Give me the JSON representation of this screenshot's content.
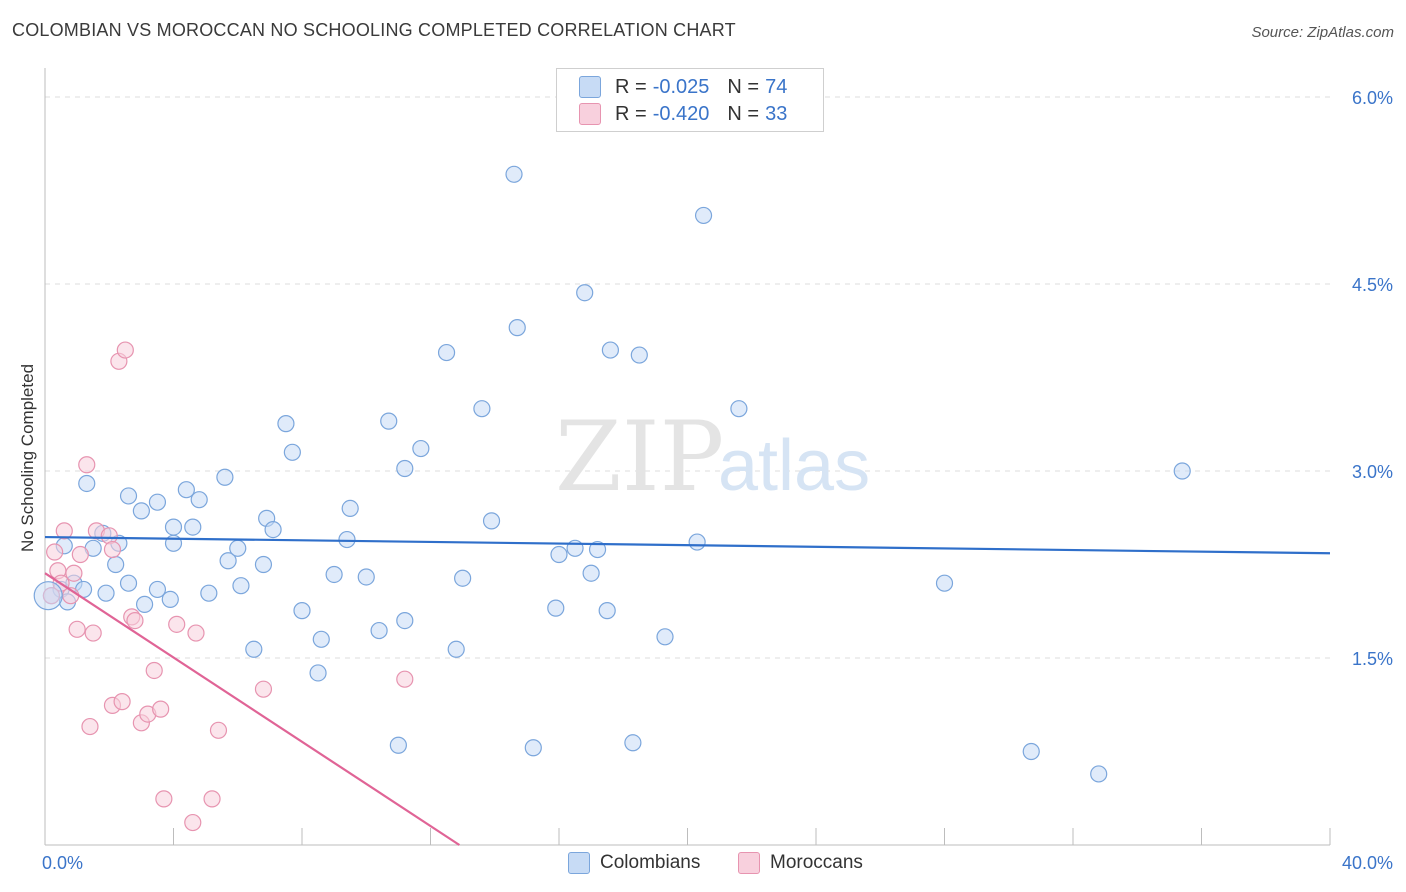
{
  "header": {
    "title": "COLOMBIAN VS MOROCCAN NO SCHOOLING COMPLETED CORRELATION CHART",
    "source": "Source: ZipAtlas.com"
  },
  "legend_top": {
    "rows": [
      {
        "r_label": "R =",
        "r_value": "-0.025",
        "n_label": "N =",
        "n_value": "74"
      },
      {
        "r_label": "R =",
        "r_value": "-0.420",
        "n_label": "N =",
        "n_value": "33"
      }
    ]
  },
  "legend_bottom": {
    "colombians": "Colombians",
    "moroccans": "Moroccans"
  },
  "watermark": {
    "zip": "ZIP",
    "atlas": "atlas"
  },
  "colors": {
    "blue_stroke": "#7ba6dc",
    "blue_fill": "#c7dbf5",
    "blue_line": "#2f6fca",
    "pink_stroke": "#e794b0",
    "pink_fill": "#f8d0dd",
    "pink_line": "#e06496",
    "tick_text": "#3a74c9",
    "grid": "#dcdcdc"
  },
  "chart_data": {
    "type": "scatter",
    "ylabel": "No Schooling Completed",
    "xlim": [
      0,
      40
    ],
    "ylim": [
      0,
      6.0
    ],
    "x_tick_labels": [
      "0.0%",
      "40.0%"
    ],
    "y_ticks": [
      {
        "value": 1.5,
        "label": "1.5%"
      },
      {
        "value": 3.0,
        "label": "3.0%"
      },
      {
        "value": 4.5,
        "label": "4.5%"
      },
      {
        "value": 6.0,
        "label": "6.0%"
      }
    ],
    "series": [
      {
        "name": "Colombians",
        "color": "blue",
        "trend": {
          "x0": 0,
          "y0": 2.47,
          "x1": 40,
          "y1": 2.34
        },
        "points": [
          [
            0.2,
            2.0
          ],
          [
            0.5,
            2.05
          ],
          [
            0.7,
            1.95
          ],
          [
            0.9,
            2.1
          ],
          [
            1.3,
            2.9
          ],
          [
            1.5,
            2.38
          ],
          [
            1.9,
            2.02
          ],
          [
            1.8,
            2.5
          ],
          [
            2.2,
            2.25
          ],
          [
            2.3,
            2.42
          ],
          [
            2.6,
            2.1
          ],
          [
            3.0,
            2.68
          ],
          [
            3.1,
            1.93
          ],
          [
            3.5,
            2.05
          ],
          [
            3.9,
            1.97
          ],
          [
            4.0,
            2.42
          ],
          [
            3.5,
            2.75
          ],
          [
            4.4,
            2.85
          ],
          [
            4.6,
            2.55
          ],
          [
            4.8,
            2.77
          ],
          [
            5.1,
            2.02
          ],
          [
            5.6,
            2.95
          ],
          [
            5.7,
            2.28
          ],
          [
            6.1,
            2.08
          ],
          [
            6.0,
            2.38
          ],
          [
            6.5,
            1.57
          ],
          [
            6.9,
            2.62
          ],
          [
            7.1,
            2.53
          ],
          [
            7.5,
            3.38
          ],
          [
            7.7,
            3.15
          ],
          [
            8.0,
            1.88
          ],
          [
            8.5,
            1.38
          ],
          [
            8.6,
            1.65
          ],
          [
            9.0,
            2.17
          ],
          [
            9.5,
            2.7
          ],
          [
            9.4,
            2.45
          ],
          [
            10.0,
            2.15
          ],
          [
            10.4,
            1.72
          ],
          [
            10.7,
            3.4
          ],
          [
            11.2,
            3.02
          ],
          [
            11.7,
            3.18
          ],
          [
            11.2,
            1.8
          ],
          [
            12.5,
            3.95
          ],
          [
            12.8,
            1.57
          ],
          [
            13.0,
            2.14
          ],
          [
            13.6,
            3.5
          ],
          [
            13.9,
            2.6
          ],
          [
            14.6,
            5.38
          ],
          [
            14.7,
            4.15
          ],
          [
            15.2,
            0.78
          ],
          [
            16.0,
            2.33
          ],
          [
            15.9,
            1.9
          ],
          [
            16.5,
            2.38
          ],
          [
            17.0,
            2.18
          ],
          [
            16.8,
            4.43
          ],
          [
            17.2,
            2.37
          ],
          [
            17.5,
            1.88
          ],
          [
            17.6,
            3.97
          ],
          [
            18.3,
            0.82
          ],
          [
            18.5,
            3.93
          ],
          [
            19.3,
            1.67
          ],
          [
            20.3,
            2.43
          ],
          [
            20.5,
            5.05
          ],
          [
            21.6,
            3.5
          ],
          [
            28.0,
            2.1
          ],
          [
            30.7,
            0.75
          ],
          [
            32.8,
            0.57
          ],
          [
            35.4,
            3.0
          ],
          [
            2.6,
            2.8
          ],
          [
            4.0,
            2.55
          ],
          [
            1.2,
            2.05
          ],
          [
            0.6,
            2.4
          ],
          [
            11.0,
            0.8
          ],
          [
            6.8,
            2.25
          ]
        ]
      },
      {
        "name": "Moroccans",
        "color": "pink",
        "trend": {
          "x0": 0,
          "y0": 2.18,
          "x1": 12.9,
          "y1": 0.0
        },
        "points": [
          [
            0.3,
            2.35
          ],
          [
            0.4,
            2.2
          ],
          [
            0.5,
            2.1
          ],
          [
            0.6,
            2.52
          ],
          [
            0.8,
            2.0
          ],
          [
            0.9,
            2.18
          ],
          [
            1.0,
            1.73
          ],
          [
            1.1,
            2.33
          ],
          [
            1.3,
            3.05
          ],
          [
            1.6,
            2.52
          ],
          [
            1.5,
            1.7
          ],
          [
            2.0,
            2.48
          ],
          [
            2.1,
            2.37
          ],
          [
            2.3,
            3.88
          ],
          [
            2.5,
            3.97
          ],
          [
            2.7,
            1.83
          ],
          [
            2.8,
            1.8
          ],
          [
            2.1,
            1.12
          ],
          [
            2.4,
            1.15
          ],
          [
            3.0,
            0.98
          ],
          [
            3.2,
            1.05
          ],
          [
            3.4,
            1.4
          ],
          [
            3.6,
            1.09
          ],
          [
            4.1,
            1.77
          ],
          [
            4.7,
            1.7
          ],
          [
            5.4,
            0.92
          ],
          [
            5.2,
            0.37
          ],
          [
            4.6,
            0.18
          ],
          [
            3.7,
            0.37
          ],
          [
            1.4,
            0.95
          ],
          [
            6.8,
            1.25
          ],
          [
            11.2,
            1.33
          ],
          [
            0.2,
            2.0
          ]
        ]
      }
    ]
  }
}
